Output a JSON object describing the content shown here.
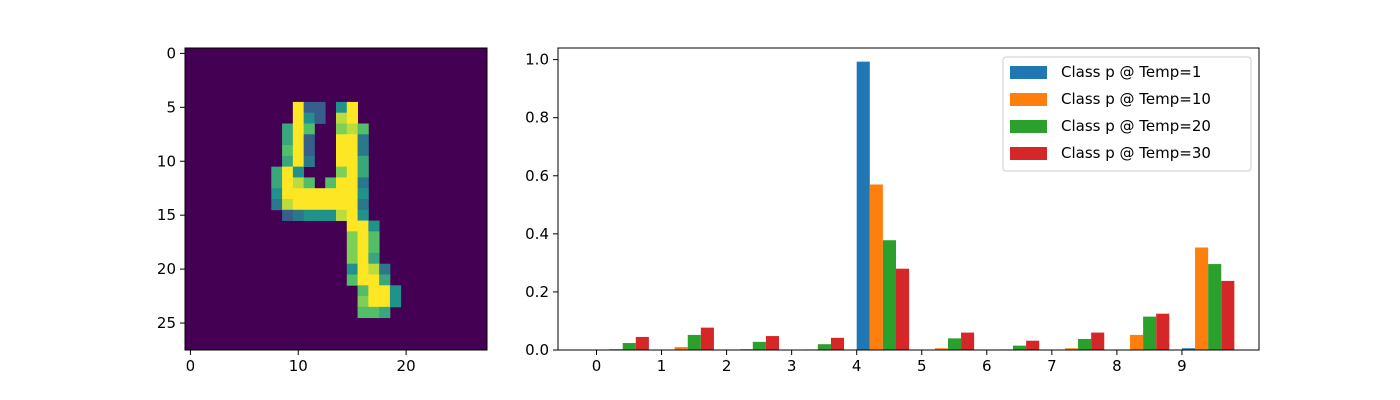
{
  "chart_data": [
    {
      "type": "heatmap",
      "title": "",
      "xlabel": "",
      "ylabel": "",
      "colormap": "viridis",
      "shape": [
        28,
        28
      ],
      "xlim": [
        -0.5,
        27.5
      ],
      "ylim": [
        27.5,
        -0.5
      ],
      "xticks": [
        0,
        10,
        20
      ],
      "yticks": [
        0,
        5,
        10,
        15,
        20,
        25
      ],
      "cells": [
        [
          5,
          10,
          1.0
        ],
        [
          5,
          11,
          0.3
        ],
        [
          5,
          12,
          0.3
        ],
        [
          5,
          14,
          0.5
        ],
        [
          5,
          15,
          1.0
        ],
        [
          6,
          10,
          1.0
        ],
        [
          6,
          11,
          0.5
        ],
        [
          6,
          12,
          0.3
        ],
        [
          6,
          14,
          0.9
        ],
        [
          6,
          15,
          1.0
        ],
        [
          7,
          9,
          0.6
        ],
        [
          7,
          10,
          1.0
        ],
        [
          7,
          11,
          0.7
        ],
        [
          7,
          14,
          0.8
        ],
        [
          7,
          15,
          0.9
        ],
        [
          7,
          16,
          0.7
        ],
        [
          8,
          9,
          0.6
        ],
        [
          8,
          10,
          1.0
        ],
        [
          8,
          11,
          0.3
        ],
        [
          8,
          14,
          1.0
        ],
        [
          8,
          15,
          1.0
        ],
        [
          8,
          16,
          0.4
        ],
        [
          9,
          9,
          0.7
        ],
        [
          9,
          10,
          1.0
        ],
        [
          9,
          11,
          0.3
        ],
        [
          9,
          14,
          1.0
        ],
        [
          9,
          15,
          1.0
        ],
        [
          9,
          16,
          0.4
        ],
        [
          10,
          9,
          0.6
        ],
        [
          10,
          10,
          1.0
        ],
        [
          10,
          11,
          0.4
        ],
        [
          10,
          14,
          1.0
        ],
        [
          10,
          15,
          1.0
        ],
        [
          10,
          16,
          0.6
        ],
        [
          11,
          8,
          0.6
        ],
        [
          11,
          9,
          1.0
        ],
        [
          11,
          10,
          0.5
        ],
        [
          11,
          14,
          0.8
        ],
        [
          11,
          15,
          1.0
        ],
        [
          11,
          16,
          0.6
        ],
        [
          12,
          8,
          0.6
        ],
        [
          12,
          9,
          1.0
        ],
        [
          12,
          10,
          0.9
        ],
        [
          12,
          11,
          0.7
        ],
        [
          12,
          13,
          0.7
        ],
        [
          12,
          14,
          1.0
        ],
        [
          12,
          15,
          1.0
        ],
        [
          12,
          16,
          0.4
        ],
        [
          13,
          8,
          0.5
        ],
        [
          13,
          9,
          1.0
        ],
        [
          13,
          10,
          1.0
        ],
        [
          13,
          11,
          1.0
        ],
        [
          13,
          12,
          1.0
        ],
        [
          13,
          13,
          1.0
        ],
        [
          13,
          14,
          1.0
        ],
        [
          13,
          15,
          1.0
        ],
        [
          13,
          16,
          0.5
        ],
        [
          14,
          8,
          0.4
        ],
        [
          14,
          9,
          0.9
        ],
        [
          14,
          10,
          1.0
        ],
        [
          14,
          11,
          1.0
        ],
        [
          14,
          12,
          1.0
        ],
        [
          14,
          13,
          1.0
        ],
        [
          14,
          14,
          1.0
        ],
        [
          14,
          15,
          1.0
        ],
        [
          14,
          16,
          0.4
        ],
        [
          15,
          9,
          0.3
        ],
        [
          15,
          10,
          0.4
        ],
        [
          15,
          11,
          0.5
        ],
        [
          15,
          12,
          0.5
        ],
        [
          15,
          13,
          0.5
        ],
        [
          15,
          14,
          0.9
        ],
        [
          15,
          15,
          1.0
        ],
        [
          15,
          16,
          0.5
        ],
        [
          16,
          15,
          1.0
        ],
        [
          16,
          16,
          1.0
        ],
        [
          16,
          17,
          0.5
        ],
        [
          17,
          15,
          0.8
        ],
        [
          17,
          16,
          1.0
        ],
        [
          17,
          17,
          0.7
        ],
        [
          18,
          15,
          0.8
        ],
        [
          18,
          16,
          1.0
        ],
        [
          18,
          17,
          0.7
        ],
        [
          19,
          15,
          0.8
        ],
        [
          19,
          16,
          1.0
        ],
        [
          19,
          17,
          0.6
        ],
        [
          20,
          15,
          0.5
        ],
        [
          20,
          16,
          1.0
        ],
        [
          20,
          17,
          0.9
        ],
        [
          20,
          18,
          0.4
        ],
        [
          21,
          15,
          0.7
        ],
        [
          21,
          16,
          1.0
        ],
        [
          21,
          17,
          1.0
        ],
        [
          21,
          18,
          0.6
        ],
        [
          22,
          16,
          0.7
        ],
        [
          22,
          17,
          1.0
        ],
        [
          22,
          18,
          1.0
        ],
        [
          22,
          19,
          0.5
        ],
        [
          23,
          16,
          0.8
        ],
        [
          23,
          17,
          1.0
        ],
        [
          23,
          18,
          1.0
        ],
        [
          23,
          19,
          0.5
        ],
        [
          24,
          16,
          0.7
        ],
        [
          24,
          17,
          0.7
        ],
        [
          24,
          18,
          0.6
        ]
      ]
    },
    {
      "type": "bar",
      "title": "",
      "xlabel": "",
      "ylabel": "",
      "categories": [
        "0",
        "1",
        "2",
        "3",
        "4",
        "5",
        "6",
        "7",
        "8",
        "9"
      ],
      "yticks": [
        "0.0",
        "0.2",
        "0.4",
        "0.6",
        "0.8",
        "1.0"
      ],
      "ylim": [
        0,
        1.04
      ],
      "legend_position": "top-right",
      "series": [
        {
          "name": "Class p @ Temp=1",
          "color": "#1f77b4",
          "values": [
            0.0,
            0.0,
            0.0,
            0.0,
            0.993,
            0.0,
            0.0,
            0.0,
            0.0,
            0.006
          ]
        },
        {
          "name": "Class p @ Temp=10",
          "color": "#ff7f0e",
          "values": [
            0.003,
            0.01,
            0.003,
            0.002,
            0.57,
            0.006,
            0.002,
            0.006,
            0.052,
            0.353
          ]
        },
        {
          "name": "Class p @ Temp=20",
          "color": "#2ca02c",
          "values": [
            0.024,
            0.052,
            0.028,
            0.02,
            0.378,
            0.04,
            0.015,
            0.038,
            0.115,
            0.296
          ]
        },
        {
          "name": "Class p @ Temp=30",
          "color": "#d62728",
          "values": [
            0.045,
            0.077,
            0.048,
            0.042,
            0.28,
            0.06,
            0.032,
            0.06,
            0.125,
            0.238
          ]
        }
      ]
    }
  ]
}
